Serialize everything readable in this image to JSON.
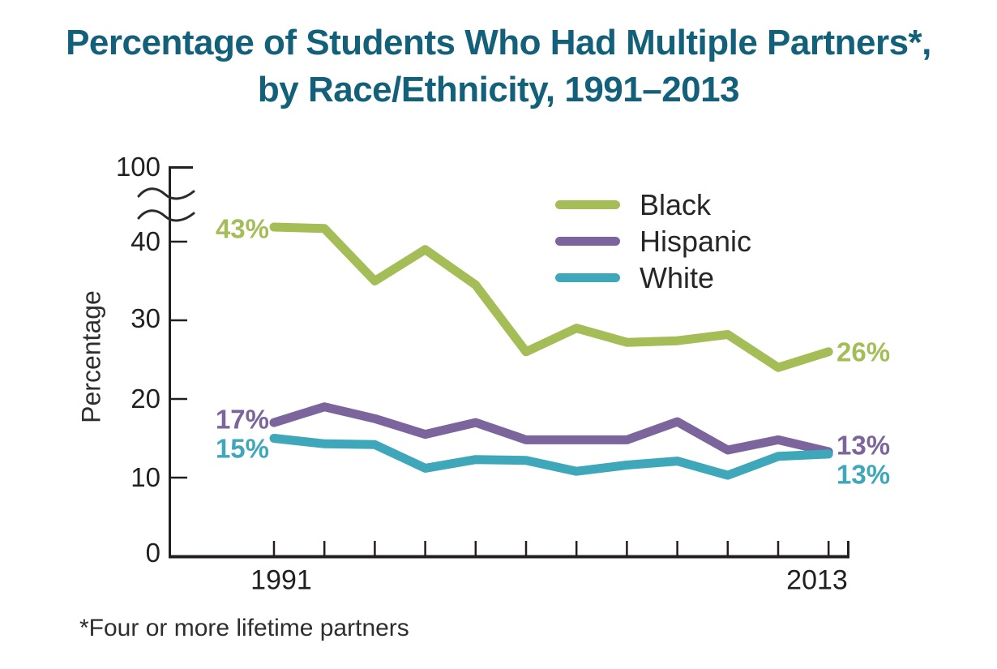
{
  "title": {
    "line1": "Percentage of Students Who Had Multiple Partners*,",
    "line2": "by Race/Ethnicity, 1991–2013",
    "color": "#13607a"
  },
  "footnote": "*Four or more lifetime partners",
  "chart_data": {
    "type": "line",
    "x": [
      1991,
      1993,
      1995,
      1997,
      1999,
      2001,
      2003,
      2005,
      2007,
      2009,
      2011,
      2013
    ],
    "x_axis": {
      "start_label": "1991",
      "end_label": "2013"
    },
    "y_axis": {
      "label": "Percentage",
      "ticks": [
        0,
        10,
        20,
        30,
        40
      ],
      "break_top_label": "100",
      "axis_break": true,
      "range_shown": [
        0,
        45
      ]
    },
    "grid": "off",
    "legend_position": "top-right",
    "series": [
      {
        "name": "Black",
        "color": "#a5bd56",
        "start_label": "43%",
        "end_label": "26%",
        "values": [
          43,
          42.7,
          35,
          39,
          34.5,
          26,
          29,
          27.2,
          27.4,
          28.2,
          24,
          26
        ]
      },
      {
        "name": "Hispanic",
        "color": "#7c649c",
        "start_label": "17%",
        "end_label": "13%",
        "values": [
          17,
          19,
          17.5,
          15.5,
          17,
          14.8,
          14.8,
          14.8,
          17.1,
          13.5,
          14.8,
          13.3
        ]
      },
      {
        "name": "White",
        "color": "#3fa7ba",
        "start_label": "15%",
        "end_label": "13%",
        "values": [
          15,
          14.3,
          14.2,
          11.2,
          12.3,
          12.2,
          10.8,
          11.6,
          12.1,
          10.3,
          12.7,
          13
        ]
      }
    ]
  }
}
